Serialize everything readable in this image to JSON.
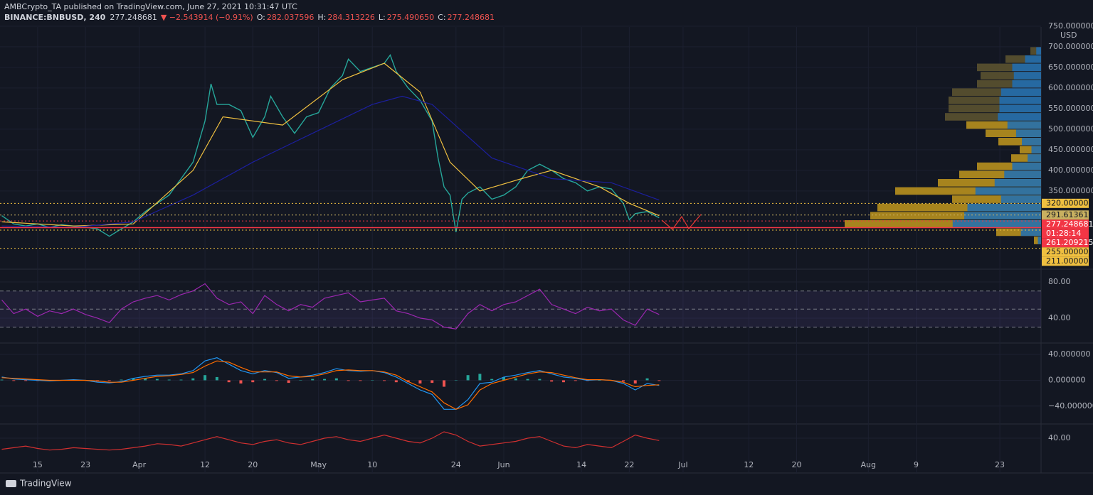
{
  "header": {
    "publisher": "AMBCrypto_TA published on TradingView.com, June 27, 2021 10:31:47 UTC",
    "symbol": "BINANCE:BNBUSD, 240",
    "last": "277.248681",
    "change": "▼ −2.543914 (−0.91%)",
    "ohlc": [
      {
        "label": "O:",
        "value": "282.037596"
      },
      {
        "label": "H:",
        "value": "284.313226"
      },
      {
        "label": "L:",
        "value": "275.490650"
      },
      {
        "label": "C:",
        "value": "277.248681"
      }
    ]
  },
  "chart_data": [
    {
      "type": "line",
      "currency": "USD",
      "xlim": [
        7.7,
        181.9
      ],
      "xticks": [
        {
          "value": 14,
          "label": "15"
        },
        {
          "value": 22,
          "label": "23"
        },
        {
          "value": 31,
          "label": "Apr"
        },
        {
          "value": 42,
          "label": "12"
        },
        {
          "value": 50,
          "label": "20"
        },
        {
          "value": 61,
          "label": "May"
        },
        {
          "value": 70,
          "label": "10"
        },
        {
          "value": 84,
          "label": "24"
        },
        {
          "value": 92,
          "label": "Jun"
        },
        {
          "value": 105,
          "label": "14"
        },
        {
          "value": 113,
          "label": "22"
        },
        {
          "value": 122,
          "label": "Jul"
        },
        {
          "value": 133,
          "label": "12"
        },
        {
          "value": 141,
          "label": "20"
        },
        {
          "value": 153,
          "label": "Aug"
        },
        {
          "value": 161,
          "label": "9"
        },
        {
          "value": 175,
          "label": "23"
        }
      ],
      "ylim": [
        162,
        748
      ],
      "yticks": [
        {
          "value": 350,
          "label": "350.000000"
        },
        {
          "value": 400,
          "label": "400.000000"
        },
        {
          "value": 450,
          "label": "450.000000"
        },
        {
          "value": 500,
          "label": "500.000000"
        },
        {
          "value": 550,
          "label": "550.000000"
        },
        {
          "value": 600,
          "label": "600.000000"
        },
        {
          "value": 650,
          "label": "650.000000"
        },
        {
          "value": 700,
          "label": "700.000000"
        },
        {
          "value": 750,
          "label": "750.000000"
        }
      ],
      "grid": true,
      "series": [
        {
          "color": "#26a69a",
          "x": [
            8,
            10,
            12,
            14,
            16,
            18,
            20,
            22,
            24,
            26,
            28,
            30,
            32,
            34,
            36,
            38,
            40,
            42,
            43,
            44,
            46,
            48,
            50,
            52,
            53,
            55,
            57,
            59,
            61,
            63,
            65,
            66,
            68,
            70,
            72,
            73,
            74,
            76,
            78,
            80,
            81,
            82,
            83,
            84,
            85,
            86,
            88,
            90,
            92,
            94,
            96,
            98,
            100,
            102,
            104,
            106,
            108,
            110,
            112,
            113,
            114,
            116,
            118
          ],
          "values": [
            290,
            270,
            265,
            270,
            262,
            268,
            265,
            262,
            258,
            240,
            258,
            275,
            300,
            320,
            340,
            380,
            420,
            520,
            610,
            560,
            560,
            545,
            480,
            530,
            580,
            530,
            490,
            530,
            540,
            600,
            630,
            670,
            640,
            650,
            660,
            680,
            640,
            600,
            570,
            520,
            430,
            360,
            340,
            250,
            330,
            345,
            360,
            330,
            340,
            360,
            400,
            415,
            400,
            380,
            370,
            350,
            360,
            355,
            320,
            280,
            295,
            300,
            285
          ]
        },
        {
          "color": "#f0c040",
          "x": [
            8,
            20,
            30,
            40,
            45,
            55,
            65,
            72,
            78,
            83,
            88,
            95,
            100,
            108,
            113,
            118
          ],
          "values": [
            275,
            265,
            270,
            400,
            530,
            510,
            620,
            660,
            590,
            420,
            350,
            380,
            400,
            360,
            320,
            290
          ]
        },
        {
          "color": "#1c1f9e",
          "x": [
            8,
            20,
            30,
            40,
            50,
            60,
            70,
            75,
            80,
            90,
            100,
            110,
            118
          ],
          "values": [
            265,
            262,
            275,
            340,
            420,
            490,
            560,
            580,
            560,
            430,
            380,
            370,
            328
          ]
        }
      ],
      "levels": [
        {
          "value": 320,
          "label": "320.000000",
          "color": "#f0c040",
          "style": "dotted"
        },
        {
          "value": 291.613618,
          "label": "291.613618",
          "color": "#c8b060",
          "style": "dotted"
        },
        {
          "value": 277.248681,
          "label": "277.248681",
          "countdown": "01:28:14",
          "color": "#f23645",
          "style": "dotted"
        },
        {
          "value": 261.209215,
          "label": "261.209215",
          "color": "#f23645",
          "style": "solid"
        },
        {
          "value": 255,
          "label": "255.000000",
          "color": "#f0c040",
          "style": "dotted"
        },
        {
          "value": 211,
          "label": "211.000000",
          "color": "#f0c040",
          "style": "dotted"
        }
      ],
      "volume_profile": {
        "prices": [
          690,
          670,
          650,
          630,
          610,
          590,
          570,
          550,
          530,
          510,
          490,
          470,
          450,
          430,
          410,
          390,
          370,
          350,
          330,
          310,
          290,
          270,
          250,
          230
        ],
        "values": [
          15,
          50,
          90,
          85,
          90,
          125,
          130,
          130,
          135,
          105,
          78,
          60,
          30,
          42,
          90,
          115,
          145,
          205,
          125,
          230,
          240,
          276,
          63,
          10
        ],
        "colors": [
          "#5b5230",
          "#5b5230",
          "#5b5230",
          "#5b5230",
          "#5b5230",
          "#5b5230",
          "#5b5230",
          "#5b5230",
          "#5b5230",
          "#b8901e",
          "#b8901e",
          "#b8901e",
          "#b8901e",
          "#b8901e",
          "#b8901e",
          "#b8901e",
          "#b8901e",
          "#b8901e",
          "#b8901e",
          "#b8901e",
          "#b8901e",
          "#b8901e",
          "#b8901e",
          "#b8901e"
        ]
      }
    },
    {
      "type": "line",
      "ylim": [
        12.5,
        93.3
      ],
      "yticks": [
        {
          "value": 80,
          "label": "80.00"
        },
        {
          "value": 40,
          "label": "40.00"
        }
      ],
      "levels": [
        70,
        50,
        30
      ],
      "series": [
        {
          "color": "#9c27b0",
          "x": [
            8,
            10,
            12,
            14,
            16,
            18,
            20,
            22,
            24,
            26,
            28,
            30,
            32,
            34,
            36,
            38,
            40,
            42,
            44,
            46,
            48,
            50,
            52,
            54,
            56,
            58,
            60,
            62,
            64,
            66,
            68,
            70,
            72,
            74,
            76,
            78,
            80,
            82,
            84,
            86,
            88,
            90,
            92,
            94,
            96,
            98,
            100,
            102,
            104,
            106,
            108,
            110,
            112,
            114,
            116,
            118
          ],
          "values": [
            60,
            45,
            50,
            42,
            48,
            45,
            50,
            44,
            40,
            35,
            50,
            58,
            62,
            65,
            60,
            66,
            70,
            78,
            62,
            55,
            58,
            45,
            65,
            55,
            48,
            55,
            52,
            62,
            65,
            68,
            58,
            60,
            62,
            48,
            45,
            40,
            38,
            30,
            28,
            45,
            55,
            48,
            55,
            58,
            65,
            72,
            55,
            50,
            45,
            52,
            48,
            50,
            38,
            32,
            50,
            44
          ]
        }
      ]
    },
    {
      "type": "line",
      "ylim": [
        -67.8,
        56.7
      ],
      "yticks": [
        {
          "value": 40,
          "label": "40.000000"
        },
        {
          "value": 0,
          "label": "0.000000"
        },
        {
          "value": -40,
          "label": "−40.000000"
        }
      ],
      "series": [
        {
          "color": "#ef5350",
          "style": "histogram",
          "x": [
            8,
            10,
            12,
            14,
            16,
            18,
            20,
            22,
            24,
            26,
            28,
            30,
            32,
            34,
            36,
            38,
            40,
            42,
            44,
            46,
            48,
            50,
            52,
            54,
            56,
            58,
            60,
            62,
            64,
            66,
            68,
            70,
            72,
            74,
            76,
            78,
            80,
            82,
            84,
            86,
            88,
            90,
            92,
            94,
            96,
            98,
            100,
            102,
            104,
            106,
            108,
            110,
            112,
            114,
            116,
            118
          ],
          "values": [
            1,
            -1,
            -1,
            -1,
            -1,
            0,
            1,
            0,
            -2,
            -1,
            1,
            3,
            3,
            2,
            1,
            1,
            3,
            8,
            5,
            -3,
            -5,
            -3,
            2,
            -1,
            -4,
            0,
            2,
            2,
            3,
            -1,
            -1,
            0,
            -1,
            -3,
            -3,
            -5,
            -4,
            -10,
            0,
            8,
            10,
            2,
            5,
            3,
            2,
            2,
            -2,
            -3,
            -1,
            -1,
            0,
            0,
            -2,
            -5,
            3,
            -1
          ]
        },
        {
          "color": "#2196f3",
          "x": [
            8,
            10,
            12,
            14,
            16,
            18,
            20,
            22,
            24,
            26,
            28,
            30,
            32,
            34,
            36,
            38,
            40,
            42,
            44,
            46,
            48,
            50,
            52,
            54,
            56,
            58,
            60,
            62,
            64,
            66,
            68,
            70,
            72,
            74,
            76,
            78,
            80,
            82,
            84,
            86,
            88,
            90,
            92,
            94,
            96,
            98,
            100,
            102,
            104,
            106,
            108,
            110,
            112,
            114,
            116,
            118
          ],
          "values": [
            5,
            2,
            1,
            0,
            -1,
            0,
            1,
            0,
            -3,
            -4,
            -2,
            3,
            6,
            8,
            8,
            10,
            15,
            30,
            35,
            25,
            15,
            10,
            15,
            12,
            3,
            5,
            8,
            12,
            18,
            15,
            14,
            15,
            12,
            5,
            -5,
            -15,
            -22,
            -45,
            -45,
            -30,
            -5,
            -3,
            5,
            8,
            12,
            15,
            10,
            5,
            3,
            0,
            1,
            0,
            -5,
            -15,
            -5,
            -8
          ]
        },
        {
          "color": "#ff6d00",
          "x": [
            8,
            10,
            12,
            14,
            16,
            18,
            20,
            22,
            24,
            26,
            28,
            30,
            32,
            34,
            36,
            38,
            40,
            42,
            44,
            46,
            48,
            50,
            52,
            54,
            56,
            58,
            60,
            62,
            64,
            66,
            68,
            70,
            72,
            74,
            76,
            78,
            80,
            82,
            84,
            86,
            88,
            90,
            92,
            94,
            96,
            98,
            100,
            102,
            104,
            106,
            108,
            110,
            112,
            114,
            116,
            118
          ],
          "values": [
            4,
            3,
            2,
            1,
            0,
            0,
            0,
            0,
            -1,
            -3,
            -3,
            0,
            3,
            6,
            7,
            9,
            12,
            22,
            30,
            28,
            20,
            13,
            13,
            13,
            7,
            5,
            6,
            10,
            15,
            16,
            15,
            15,
            13,
            8,
            -2,
            -10,
            -18,
            -35,
            -45,
            -38,
            -15,
            -5,
            0,
            5,
            10,
            13,
            12,
            8,
            4,
            1,
            1,
            0,
            -3,
            -10,
            -8,
            -7
          ]
        }
      ]
    },
    {
      "type": "line",
      "ylim": [
        -3,
        57
      ],
      "yticks": [
        {
          "value": 40,
          "label": "40.00"
        }
      ],
      "series": [
        {
          "color": "#d03030",
          "x": [
            8,
            10,
            12,
            14,
            16,
            18,
            20,
            22,
            24,
            26,
            28,
            30,
            32,
            34,
            36,
            38,
            40,
            42,
            44,
            46,
            48,
            50,
            52,
            54,
            56,
            58,
            60,
            62,
            64,
            66,
            68,
            70,
            72,
            74,
            76,
            78,
            80,
            82,
            84,
            86,
            88,
            90,
            92,
            94,
            96,
            98,
            100,
            102,
            104,
            106,
            108,
            110,
            112,
            114,
            116,
            118
          ],
          "values": [
            26,
            28,
            30,
            27,
            25,
            26,
            28,
            27,
            26,
            25,
            26,
            28,
            30,
            33,
            32,
            30,
            34,
            38,
            42,
            38,
            34,
            32,
            36,
            38,
            34,
            32,
            36,
            40,
            42,
            38,
            36,
            40,
            44,
            40,
            36,
            34,
            40,
            48,
            44,
            36,
            30,
            32,
            34,
            36,
            40,
            42,
            36,
            30,
            28,
            32,
            30,
            28,
            36,
            44,
            40,
            37
          ]
        }
      ]
    }
  ],
  "footer": "TradingView"
}
